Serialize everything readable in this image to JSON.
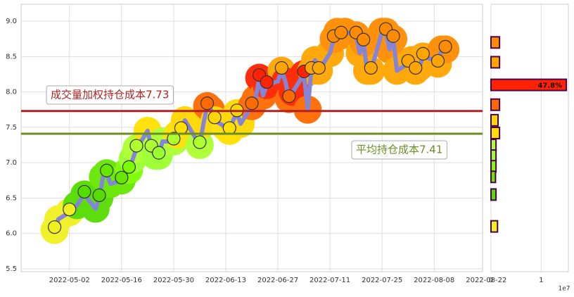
{
  "chart_data": [
    {
      "type": "line",
      "x": [
        "2022-04-28",
        "2022-04-29",
        "2022-05-02",
        "2022-05-04",
        "2022-05-06",
        "2022-05-09",
        "2022-05-10",
        "2022-05-11",
        "2022-05-12",
        "2022-05-13",
        "2022-05-16",
        "2022-05-17",
        "2022-05-18",
        "2022-05-19",
        "2022-05-20",
        "2022-05-23",
        "2022-05-24",
        "2022-05-25",
        "2022-05-26",
        "2022-05-27",
        "2022-05-30",
        "2022-05-31",
        "2022-06-01",
        "2022-06-02",
        "2022-06-06",
        "2022-06-07",
        "2022-06-08",
        "2022-06-09",
        "2022-06-10",
        "2022-06-13",
        "2022-06-14",
        "2022-06-15",
        "2022-06-16",
        "2022-06-17",
        "2022-06-20",
        "2022-06-21",
        "2022-06-22",
        "2022-06-23",
        "2022-06-24",
        "2022-06-27",
        "2022-06-28",
        "2022-06-29",
        "2022-06-30",
        "2022-07-01",
        "2022-07-04",
        "2022-07-05",
        "2022-07-06",
        "2022-07-07",
        "2022-07-08",
        "2022-07-11",
        "2022-07-12",
        "2022-07-13",
        "2022-07-14",
        "2022-07-15",
        "2022-07-18",
        "2022-07-19",
        "2022-07-20",
        "2022-07-21",
        "2022-07-22",
        "2022-07-25",
        "2022-07-26",
        "2022-07-27",
        "2022-07-28",
        "2022-07-29",
        "2022-08-01",
        "2022-08-02",
        "2022-08-03",
        "2022-08-04",
        "2022-08-05",
        "2022-08-08",
        "2022-08-09",
        "2022-08-10",
        "2022-08-11"
      ],
      "series": [
        {
          "color": "#8585d6",
          "values": [
            6.05,
            6.2,
            6.3,
            6.4,
            6.55,
            6.35,
            6.5,
            6.8,
            6.85,
            6.7,
            6.75,
            6.85,
            6.9,
            7.05,
            7.2,
            7.45,
            7.2,
            7.1,
            7.1,
            7.3,
            7.3,
            7.4,
            7.45,
            7.6,
            7.25,
            7.55,
            7.8,
            7.75,
            7.6,
            7.5,
            7.45,
            7.6,
            7.7,
            7.55,
            7.8,
            7.9,
            8.2,
            7.95,
            8.1,
            8.15,
            8.3,
            8.15,
            7.9,
            8.0,
            8.25,
            7.75,
            8.3,
            8.45,
            8.3,
            8.55,
            8.75,
            8.85,
            8.8,
            8.85,
            8.8,
            8.55,
            8.7,
            8.3,
            8.3,
            8.85,
            8.85,
            8.6,
            8.75,
            8.3,
            8.4,
            8.45,
            8.3,
            8.35,
            8.5,
            8.45,
            8.4,
            8.6,
            8.6
          ]
        }
      ],
      "xlim": [
        "2022-04-19",
        "2022-08-21"
      ],
      "xticks": [
        "2022-05-02",
        "2022-05-16",
        "2022-05-30",
        "2022-06-13",
        "2022-06-27",
        "2022-07-11",
        "2022-07-25",
        "2022-08-08",
        "2022-08-22"
      ],
      "ylim": [
        5.46,
        9.24
      ],
      "yticks": [
        {
          "value": 5.5,
          "label": "5.5"
        },
        {
          "value": 6.0,
          "label": "6.0"
        },
        {
          "value": 6.5,
          "label": "6.5"
        },
        {
          "value": 7.0,
          "label": "7.0"
        },
        {
          "value": 7.5,
          "label": "7.5"
        },
        {
          "value": 8.0,
          "label": "8.0"
        },
        {
          "value": 8.5,
          "label": "8.5"
        },
        {
          "value": 9.0,
          "label": "9.0"
        }
      ],
      "grid": true,
      "hlines": [
        {
          "value": 7.73,
          "color": "#b22222",
          "label": "成交量加权持仓成本7.73"
        },
        {
          "value": 7.41,
          "color": "#6b8e23",
          "label": "平均持仓成本7.41"
        }
      ]
    },
    {
      "type": "hbar",
      "y": [
        8.7,
        8.42,
        8.1,
        7.82,
        7.6,
        7.42,
        7.25,
        7.1,
        6.95,
        6.8,
        6.55,
        6.1
      ],
      "values": [
        0.17,
        0.17,
        1.5,
        0.17,
        0.14,
        0.17,
        0.1,
        0.1,
        0.1,
        0.09,
        0.1,
        0.13
      ],
      "colors": [
        "#ff8c00",
        "#ffa500",
        "#ff2200",
        "#ff6a00",
        "#ffd700",
        "#ffe000",
        "#adff2f",
        "#9aff2f",
        "#7cfc00",
        "#66e600",
        "#55dd00",
        "#f0f020"
      ],
      "labels": [
        null,
        null,
        "47.8%",
        null,
        null,
        null,
        null,
        null,
        null,
        null,
        null,
        null
      ],
      "xlim": [
        0,
        1.54
      ],
      "xticks": [
        0,
        1
      ],
      "offset_label": "1e7",
      "grid": true
    }
  ]
}
